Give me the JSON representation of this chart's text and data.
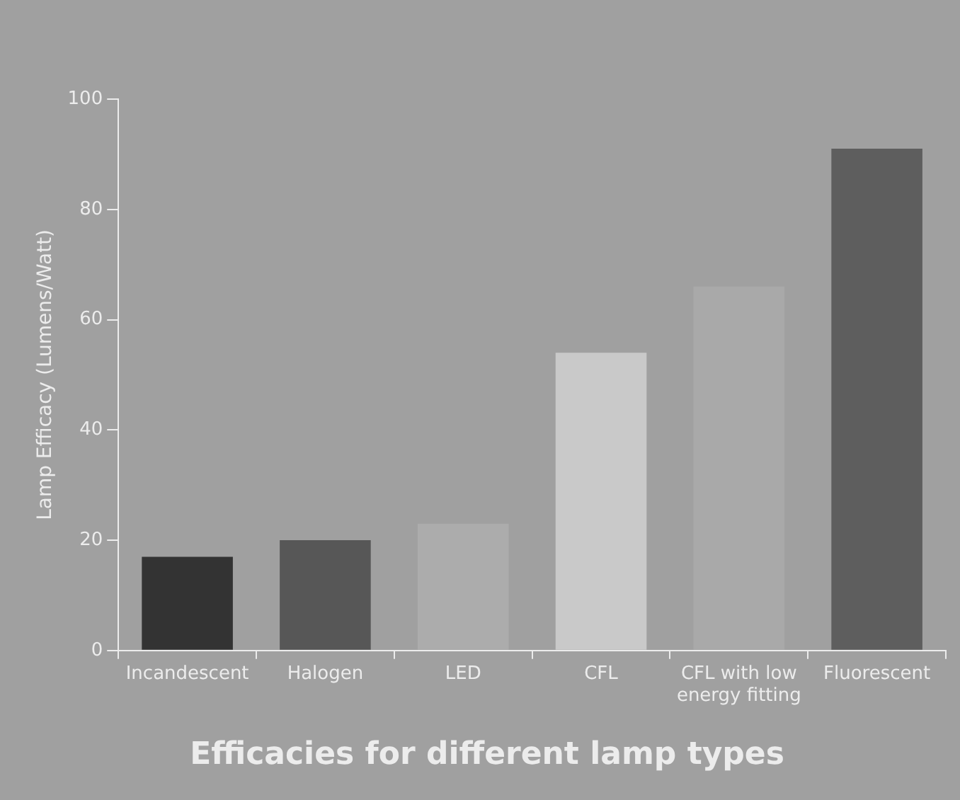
{
  "chart_data": {
    "type": "bar",
    "title": "Efficacies for different lamp types",
    "ylabel": "Lamp Efficacy (Lumens/Watt)",
    "categories": [
      "Incandescent",
      "Halogen",
      "LED",
      "CFL",
      "CFL with low energy fitting",
      "Fluorescent"
    ],
    "values": [
      17,
      20,
      23,
      54,
      66,
      91
    ],
    "colors": [
      "#333333",
      "#575757",
      "#acacac",
      "#c9c9c9",
      "#a9a9a9",
      "#5e5e5e"
    ],
    "ylim": [
      0,
      100
    ],
    "yticks": [
      0,
      20,
      40,
      60,
      80,
      100
    ],
    "grid": false,
    "legend": false
  }
}
